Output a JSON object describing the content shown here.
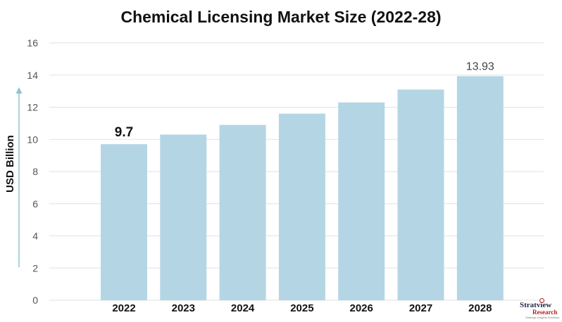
{
  "chart_data": {
    "type": "bar",
    "title": "Chemical Licensing Market Size (2022-28)",
    "ylabel": "USD Billion",
    "xlabel": "",
    "categories": [
      "2022",
      "2023",
      "2024",
      "2025",
      "2026",
      "2027",
      "2028"
    ],
    "values": [
      9.7,
      10.3,
      10.9,
      11.6,
      12.3,
      13.1,
      13.93
    ],
    "data_labels": [
      {
        "category": "2022",
        "text": "9.7"
      },
      {
        "category": "2028",
        "text": "13.93"
      }
    ],
    "ylim": [
      0,
      16
    ],
    "yticks": [
      0,
      2,
      4,
      6,
      8,
      10,
      12,
      14,
      16
    ],
    "grid": true,
    "legend": "none",
    "colors": {
      "bar": "#b4d6e4",
      "grid": "#e2e2e2",
      "arrow": "#8fc3d3"
    }
  },
  "logo": {
    "name": "Stratview",
    "sub": "Research",
    "tagline": "Strategic Insights Solutions"
  }
}
